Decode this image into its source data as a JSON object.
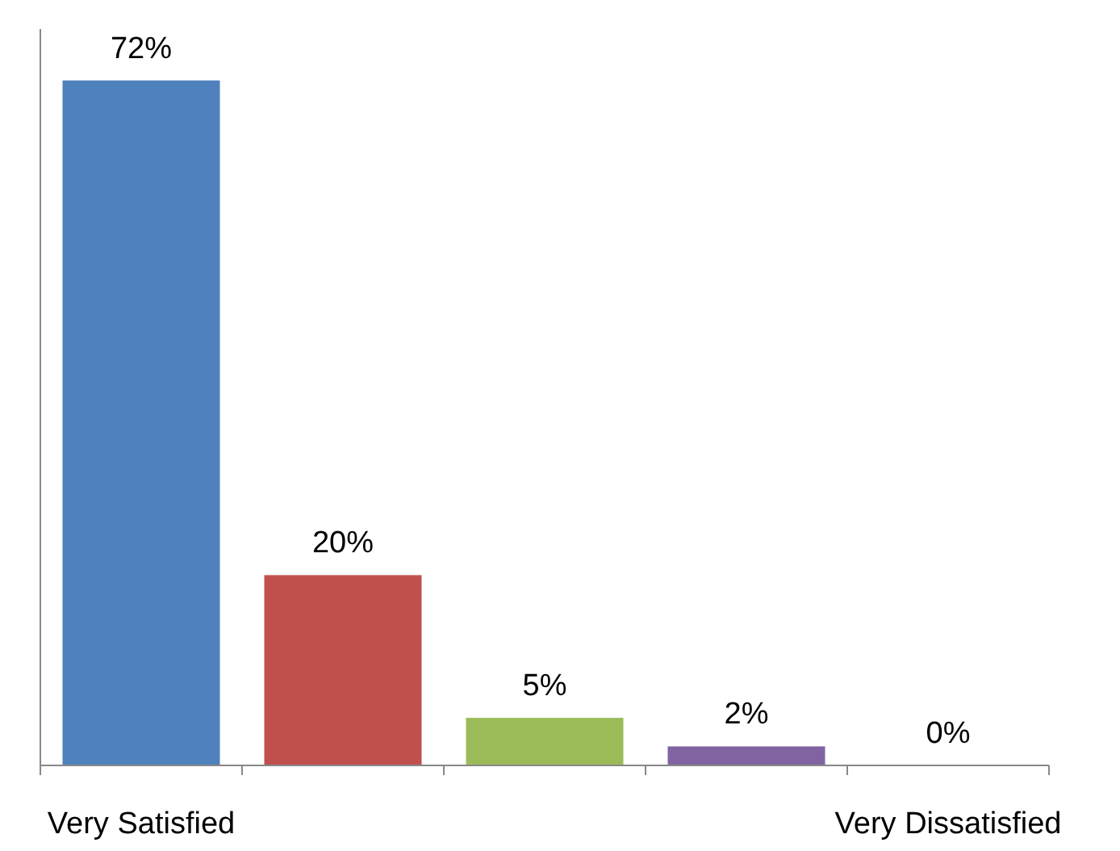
{
  "chart_data": {
    "type": "bar",
    "categories": [
      "Very Satisfied",
      null,
      null,
      null,
      "Very Dissatisfied"
    ],
    "values": [
      72,
      20,
      5,
      2,
      0
    ],
    "colors": [
      "#4f81bd",
      "#c0504d",
      "#9bbb59",
      "#8064a2",
      "#4bacc6"
    ],
    "value_labels": [
      "72%",
      "20%",
      "5%",
      "2%",
      "0%"
    ]
  }
}
